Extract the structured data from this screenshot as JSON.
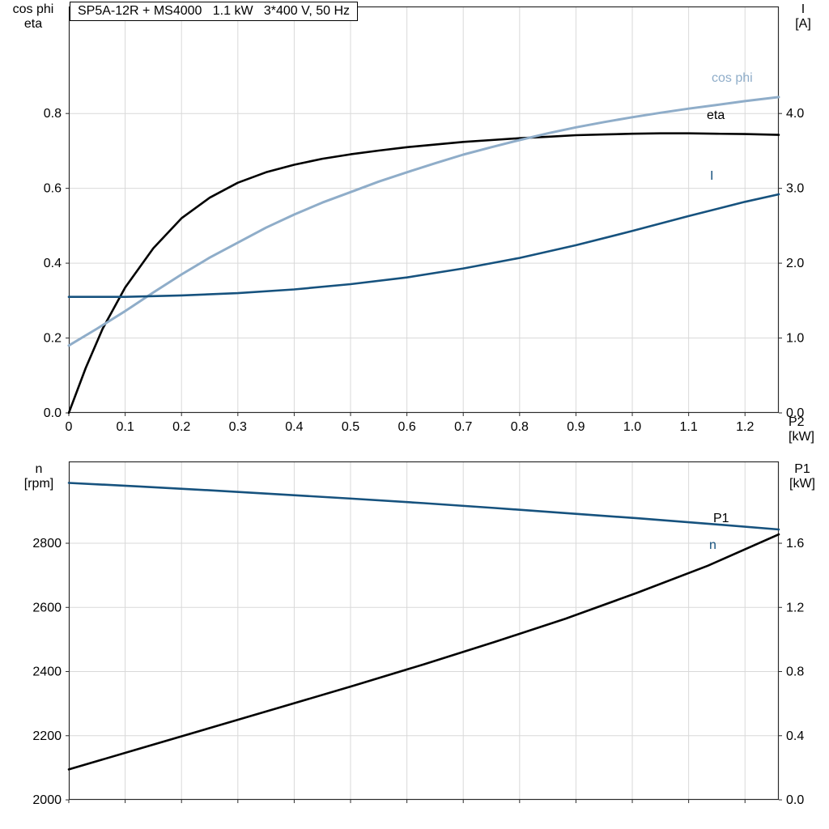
{
  "title_box": "SP5A-12R + MS4000   1.1 kW   3*400 V, 50 Hz",
  "colors": {
    "light_blue": "#8fadc9",
    "dark_blue": "#16527e",
    "black": "#000000",
    "grid": "#d9d9d9",
    "frame": "#2b2b2b"
  },
  "chart_data": [
    {
      "id": "top",
      "type": "line",
      "xlabel": "P2 [kW]",
      "x_axis": {
        "min": 0,
        "max": 1.26,
        "tick_values": [
          0,
          0.1,
          0.2,
          0.3,
          0.4,
          0.5,
          0.6,
          0.7,
          0.8,
          0.9,
          1.0,
          1.1,
          1.2
        ],
        "tick_labels": [
          "0",
          "0.1",
          "0.2",
          "0.3",
          "0.4",
          "0.5",
          "0.6",
          "0.7",
          "0.8",
          "0.9",
          "1.0",
          "1.1",
          "1.2"
        ]
      },
      "left_axis": {
        "min": 0,
        "max": 1.086,
        "tick_values": [
          0,
          0.2,
          0.4,
          0.6,
          0.8
        ],
        "tick_labels": [
          "0.0",
          "0.2",
          "0.4",
          "0.6",
          "0.8"
        ],
        "title_lines": [
          "cos phi",
          "eta"
        ]
      },
      "right_axis": {
        "min": 0,
        "max": 5.43,
        "tick_values": [
          0,
          1,
          2,
          3,
          4
        ],
        "tick_labels": [
          "0.0",
          "1.0",
          "2.0",
          "3.0",
          "4.0"
        ],
        "title_lines": [
          "I",
          "[A]"
        ]
      },
      "series": [
        {
          "name": "eta",
          "axis": "left",
          "color": "black",
          "width": 2.6,
          "points": [
            [
              0,
              0
            ],
            [
              0.03,
              0.12
            ],
            [
              0.06,
              0.225
            ],
            [
              0.1,
              0.335
            ],
            [
              0.15,
              0.44
            ],
            [
              0.2,
              0.52
            ],
            [
              0.25,
              0.575
            ],
            [
              0.3,
              0.615
            ],
            [
              0.35,
              0.643
            ],
            [
              0.4,
              0.663
            ],
            [
              0.45,
              0.679
            ],
            [
              0.5,
              0.691
            ],
            [
              0.55,
              0.701
            ],
            [
              0.6,
              0.71
            ],
            [
              0.65,
              0.717
            ],
            [
              0.7,
              0.724
            ],
            [
              0.75,
              0.729
            ],
            [
              0.8,
              0.734
            ],
            [
              0.85,
              0.738
            ],
            [
              0.9,
              0.742
            ],
            [
              0.95,
              0.744
            ],
            [
              1.0,
              0.746
            ],
            [
              1.05,
              0.747
            ],
            [
              1.1,
              0.747
            ],
            [
              1.15,
              0.746
            ],
            [
              1.2,
              0.745
            ],
            [
              1.26,
              0.743
            ]
          ]
        },
        {
          "name": "cos phi",
          "axis": "left",
          "color": "light_blue",
          "width": 3,
          "points": [
            [
              0,
              0.18
            ],
            [
              0.05,
              0.225
            ],
            [
              0.1,
              0.272
            ],
            [
              0.15,
              0.322
            ],
            [
              0.2,
              0.37
            ],
            [
              0.25,
              0.415
            ],
            [
              0.3,
              0.455
            ],
            [
              0.35,
              0.495
            ],
            [
              0.4,
              0.53
            ],
            [
              0.45,
              0.562
            ],
            [
              0.5,
              0.59
            ],
            [
              0.55,
              0.618
            ],
            [
              0.6,
              0.643
            ],
            [
              0.65,
              0.667
            ],
            [
              0.7,
              0.69
            ],
            [
              0.75,
              0.71
            ],
            [
              0.8,
              0.729
            ],
            [
              0.85,
              0.747
            ],
            [
              0.9,
              0.763
            ],
            [
              0.95,
              0.777
            ],
            [
              1.0,
              0.79
            ],
            [
              1.05,
              0.802
            ],
            [
              1.1,
              0.813
            ],
            [
              1.15,
              0.823
            ],
            [
              1.2,
              0.833
            ],
            [
              1.26,
              0.844
            ]
          ]
        },
        {
          "name": "I",
          "axis": "right",
          "color": "dark_blue",
          "width": 2.6,
          "points": [
            [
              0,
              1.55
            ],
            [
              0.1,
              1.55
            ],
            [
              0.2,
              1.57
            ],
            [
              0.3,
              1.6
            ],
            [
              0.4,
              1.65
            ],
            [
              0.5,
              1.72
            ],
            [
              0.6,
              1.81
            ],
            [
              0.7,
              1.93
            ],
            [
              0.8,
              2.07
            ],
            [
              0.9,
              2.24
            ],
            [
              1.0,
              2.43
            ],
            [
              1.1,
              2.63
            ],
            [
              1.2,
              2.82
            ],
            [
              1.26,
              2.92
            ]
          ]
        }
      ]
    },
    {
      "id": "bottom",
      "type": "line",
      "xlabel": "",
      "x_axis": {
        "min": 0,
        "max": 1.26,
        "tick_values": [
          0,
          0.1,
          0.2,
          0.3,
          0.4,
          0.5,
          0.6,
          0.7,
          0.8,
          0.9,
          1.0,
          1.1,
          1.2
        ],
        "tick_labels": null
      },
      "left_axis": {
        "min": 2000,
        "max": 3055,
        "tick_values": [
          2000,
          2200,
          2400,
          2600,
          2800
        ],
        "tick_labels": [
          "2000",
          "2200",
          "2400",
          "2600",
          "2800"
        ],
        "title_lines": [
          "n",
          "[rpm]"
        ]
      },
      "right_axis": {
        "min": 0,
        "max": 2.11,
        "tick_values": [
          0,
          0.4,
          0.8,
          1.2,
          1.6
        ],
        "tick_labels": [
          "0.0",
          "0.4",
          "0.8",
          "1.2",
          "1.6"
        ],
        "title_lines": [
          "P1",
          "[kW]"
        ]
      },
      "series": [
        {
          "name": "n",
          "axis": "left",
          "color": "dark_blue",
          "width": 2.6,
          "points": [
            [
              0,
              2988
            ],
            [
              0.126,
              2977
            ],
            [
              0.252,
              2965
            ],
            [
              0.378,
              2952
            ],
            [
              0.504,
              2939
            ],
            [
              0.63,
              2925
            ],
            [
              0.756,
              2910
            ],
            [
              0.882,
              2894
            ],
            [
              1.008,
              2878
            ],
            [
              1.134,
              2861
            ],
            [
              1.26,
              2843
            ]
          ]
        },
        {
          "name": "P1",
          "axis": "right",
          "color": "black",
          "width": 2.6,
          "points": [
            [
              0,
              0.19
            ],
            [
              0.126,
              0.32
            ],
            [
              0.252,
              0.45
            ],
            [
              0.378,
              0.58
            ],
            [
              0.504,
              0.71
            ],
            [
              0.63,
              0.845
            ],
            [
              0.756,
              0.985
            ],
            [
              0.882,
              1.13
            ],
            [
              1.008,
              1.29
            ],
            [
              1.134,
              1.46
            ],
            [
              1.26,
              1.655
            ]
          ]
        }
      ]
    }
  ]
}
